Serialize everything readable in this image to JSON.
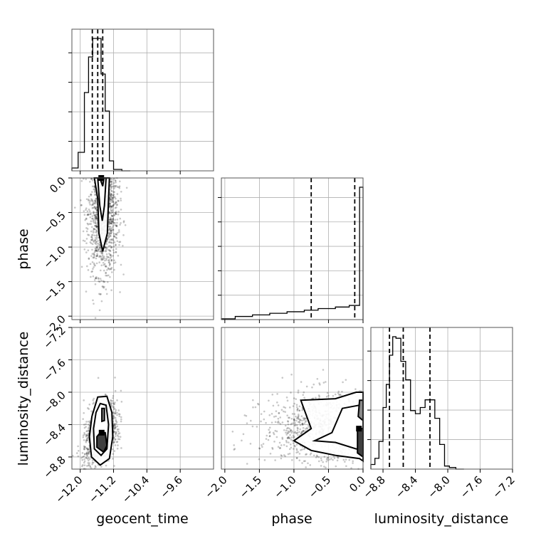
{
  "chart_data": {
    "type": "corner",
    "parameters": [
      "geocent_time",
      "phase",
      "luminosity_distance"
    ],
    "axes": {
      "geocent_time": {
        "range": [
          -12.2,
          -8.8
        ],
        "ticks": [
          -12.0,
          -11.2,
          -10.4,
          -9.6
        ],
        "tick_labels": [
          "−12.0",
          "−11.2",
          "−10.4",
          "−9.6"
        ],
        "label": "geocent_time"
      },
      "phase": {
        "range": [
          -2.05,
          0.0
        ],
        "ticks": [
          -2.0,
          -1.5,
          -1.0,
          -0.5,
          0.0
        ],
        "tick_labels": [
          "−2.0",
          "−1.5",
          "−1.0",
          "−0.5",
          "0.0"
        ],
        "label": "phase"
      },
      "luminosity_distance": {
        "range": [
          -8.95,
          -7.2
        ],
        "ticks": [
          -8.8,
          -8.4,
          -8.0,
          -7.6,
          -7.2
        ],
        "tick_labels": [
          "−8.8",
          "−8.4",
          "−8.0",
          "−7.6",
          "−7.2"
        ],
        "label": "luminosity_distance"
      }
    },
    "histograms": {
      "geocent_time": {
        "bin_edges": [
          -12.2,
          -12.05,
          -11.9,
          -11.8,
          -11.7,
          -11.6,
          -11.5,
          -11.4,
          -11.3,
          -11.2,
          -11.0,
          -10.8
        ],
        "counts": [
          2,
          13,
          55,
          80,
          93,
          93,
          68,
          42,
          7,
          1,
          0
        ],
        "quantiles": [
          -11.71,
          -11.58,
          -11.46
        ]
      },
      "phase": {
        "bin_edges": [
          -2.05,
          -1.85,
          -1.6,
          -1.35,
          -1.1,
          -0.85,
          -0.65,
          -0.4,
          -0.2,
          -0.05,
          0.0
        ],
        "counts": [
          0.5,
          2,
          3,
          4,
          5,
          6,
          7,
          8,
          9,
          84
        ],
        "quantiles": [
          -0.75,
          -0.12
        ]
      },
      "luminosity_distance": {
        "bin_edges": [
          -8.95,
          -8.9,
          -8.85,
          -8.8,
          -8.76,
          -8.72,
          -8.68,
          -8.64,
          -8.58,
          -8.52,
          -8.46,
          -8.4,
          -8.34,
          -8.28,
          -8.22,
          -8.16,
          -8.1,
          -8.04,
          -7.98,
          -7.9,
          -7.8
        ],
        "counts": [
          3,
          7,
          18,
          40,
          55,
          74,
          86,
          85,
          70,
          58,
          38,
          36,
          40,
          45,
          45,
          33,
          16,
          2,
          1,
          0
        ],
        "quantiles": [
          -8.72,
          -8.55,
          -8.22
        ]
      }
    },
    "scatter_panels": [
      {
        "x": "geocent_time",
        "y": "phase",
        "center": [
          -11.45,
          -0.5
        ],
        "spread": [
          0.18,
          0.45
        ],
        "contours": [
          [
            [
              -11.66,
              0.0
            ],
            [
              -11.3,
              0.0
            ],
            [
              -11.32,
              -0.3
            ],
            [
              -11.35,
              -0.8
            ],
            [
              -11.46,
              -1.06
            ],
            [
              -11.55,
              -0.8
            ],
            [
              -11.58,
              -0.3
            ]
          ],
          [
            [
              -11.58,
              0.0
            ],
            [
              -11.38,
              0.0
            ],
            [
              -11.42,
              -0.4
            ],
            [
              -11.47,
              -0.62
            ],
            [
              -11.53,
              -0.4
            ]
          ],
          [
            [
              -11.53,
              0.0
            ],
            [
              -11.43,
              0.0
            ],
            [
              -11.46,
              -0.12
            ]
          ]
        ]
      },
      {
        "x": "geocent_time",
        "y": "luminosity_distance",
        "center": [
          -11.5,
          -8.5
        ],
        "spread": [
          0.17,
          0.19
        ],
        "contours": [
          [
            [
              -11.58,
              -8.06
            ],
            [
              -11.36,
              -8.05
            ],
            [
              -11.24,
              -8.25
            ],
            [
              -11.22,
              -8.55
            ],
            [
              -11.3,
              -8.82
            ],
            [
              -11.52,
              -8.9
            ],
            [
              -11.73,
              -8.8
            ],
            [
              -11.78,
              -8.55
            ],
            [
              -11.72,
              -8.3
            ]
          ],
          [
            [
              -11.52,
              -8.14
            ],
            [
              -11.38,
              -8.16
            ],
            [
              -11.32,
              -8.4
            ],
            [
              -11.36,
              -8.7
            ],
            [
              -11.5,
              -8.78
            ],
            [
              -11.66,
              -8.7
            ],
            [
              -11.68,
              -8.45
            ],
            [
              -11.62,
              -8.25
            ]
          ],
          [
            [
              -11.48,
              -8.2
            ],
            [
              -11.42,
              -8.2
            ],
            [
              -11.42,
              -8.35
            ],
            [
              -11.48,
              -8.36
            ]
          ],
          [
            [
              -11.52,
              -8.5
            ],
            [
              -11.4,
              -8.5
            ],
            [
              -11.36,
              -8.66
            ],
            [
              -11.44,
              -8.74
            ],
            [
              -11.6,
              -8.68
            ],
            [
              -11.6,
              -8.55
            ]
          ]
        ]
      },
      {
        "x": "phase",
        "y": "luminosity_distance",
        "center": [
          -0.35,
          -8.45
        ],
        "spread": [
          0.55,
          0.22
        ],
        "contours": [
          [
            [
              -0.9,
              -8.1
            ],
            [
              -0.4,
              -8.08
            ],
            [
              -0.1,
              -8.0
            ],
            [
              0.0,
              -8.0
            ],
            [
              0.0,
              -8.85
            ],
            [
              -0.05,
              -8.82
            ],
            [
              -0.4,
              -8.78
            ],
            [
              -0.75,
              -8.72
            ],
            [
              -1.0,
              -8.6
            ],
            [
              -0.75,
              -8.45
            ]
          ],
          [
            [
              -0.3,
              -8.2
            ],
            [
              -0.05,
              -8.16
            ],
            [
              0.0,
              -8.15
            ],
            [
              0.0,
              -8.7
            ],
            [
              -0.1,
              -8.7
            ],
            [
              -0.4,
              -8.62
            ],
            [
              -0.7,
              -8.6
            ],
            [
              -0.45,
              -8.5
            ]
          ],
          [
            [
              -0.05,
              -8.1
            ],
            [
              0.0,
              -8.1
            ],
            [
              0.0,
              -8.35
            ],
            [
              -0.07,
              -8.3
            ]
          ],
          [
            [
              -0.08,
              -8.45
            ],
            [
              0.0,
              -8.45
            ],
            [
              0.0,
              -8.8
            ],
            [
              -0.08,
              -8.75
            ]
          ]
        ]
      }
    ],
    "grid": true
  }
}
